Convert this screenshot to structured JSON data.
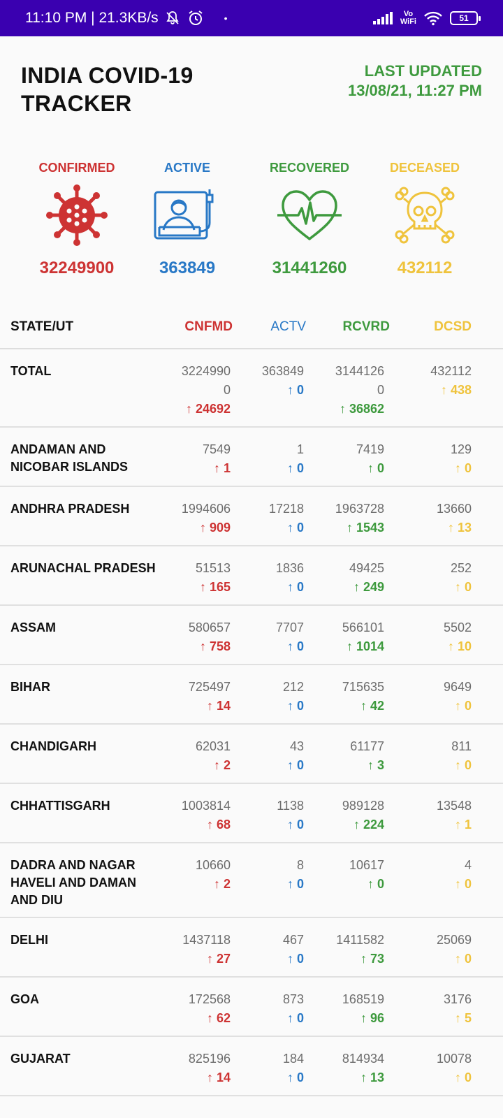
{
  "status_bar": {
    "time_speed": "11:10 PM | 21.3KB/s",
    "dot": "•",
    "vo": "Vo",
    "wifi": "WiFi",
    "battery": "51"
  },
  "header": {
    "title_line1": "INDIA COVID-19",
    "title_line2": "TRACKER",
    "last_updated_label": "LAST UPDATED",
    "last_updated_value": "13/08/21, 11:27 PM"
  },
  "summary": {
    "confirmed": {
      "label": "CONFIRMED",
      "value": "32249900"
    },
    "active": {
      "label": "ACTIVE",
      "value": "363849"
    },
    "recovered": {
      "label": "RECOVERED",
      "value": "31441260"
    },
    "deceased": {
      "label": "DECEASED",
      "value": "432112"
    }
  },
  "table": {
    "headers": {
      "state": "STATE/UT",
      "confirmed": "CNFMD",
      "active": "ACTV",
      "recovered": "RCVRD",
      "deceased": "DCSD"
    },
    "total": {
      "name": "TOTAL",
      "confirmed_line1": "3224990",
      "confirmed_line2": "0",
      "confirmed_delta": "↑ 24692",
      "active": "363849",
      "active_delta": "↑ 0",
      "recovered_line1": "3144126",
      "recovered_line2": "0",
      "recovered_delta": "↑ 36862",
      "deceased": "432112",
      "deceased_delta": "↑ 438"
    },
    "rows": [
      {
        "name": "ANDAMAN AND NICOBAR ISLANDS",
        "confirmed": "7549",
        "confirmed_delta": "↑ 1",
        "active": "1",
        "active_delta": "↑ 0",
        "recovered": "7419",
        "recovered_delta": "↑ 0",
        "deceased": "129",
        "deceased_delta": "↑ 0"
      },
      {
        "name": "ANDHRA PRADESH",
        "confirmed": "1994606",
        "confirmed_delta": "↑ 909",
        "active": "17218",
        "active_delta": "↑ 0",
        "recovered": "1963728",
        "recovered_delta": "↑ 1543",
        "deceased": "13660",
        "deceased_delta": "↑ 13"
      },
      {
        "name": "ARUNACHAL PRADESH",
        "confirmed": "51513",
        "confirmed_delta": "↑ 165",
        "active": "1836",
        "active_delta": "↑ 0",
        "recovered": "49425",
        "recovered_delta": "↑ 249",
        "deceased": "252",
        "deceased_delta": "↑ 0"
      },
      {
        "name": "ASSAM",
        "confirmed": "580657",
        "confirmed_delta": "↑ 758",
        "active": "7707",
        "active_delta": "↑ 0",
        "recovered": "566101",
        "recovered_delta": "↑ 1014",
        "deceased": "5502",
        "deceased_delta": "↑ 10"
      },
      {
        "name": "BIHAR",
        "confirmed": "725497",
        "confirmed_delta": "↑ 14",
        "active": "212",
        "active_delta": "↑ 0",
        "recovered": "715635",
        "recovered_delta": "↑ 42",
        "deceased": "9649",
        "deceased_delta": "↑ 0"
      },
      {
        "name": "CHANDIGARH",
        "confirmed": "62031",
        "confirmed_delta": "↑ 2",
        "active": "43",
        "active_delta": "↑ 0",
        "recovered": "61177",
        "recovered_delta": "↑ 3",
        "deceased": "811",
        "deceased_delta": "↑ 0"
      },
      {
        "name": "CHHATTISGARH",
        "confirmed": "1003814",
        "confirmed_delta": "↑ 68",
        "active": "1138",
        "active_delta": "↑ 0",
        "recovered": "989128",
        "recovered_delta": "↑ 224",
        "deceased": "13548",
        "deceased_delta": "↑ 1"
      },
      {
        "name": "DADRA AND NAGAR HAVELI AND DAMAN AND DIU",
        "confirmed": "10660",
        "confirmed_delta": "↑ 2",
        "active": "8",
        "active_delta": "↑ 0",
        "recovered": "10617",
        "recovered_delta": "↑ 0",
        "deceased": "4",
        "deceased_delta": "↑ 0"
      },
      {
        "name": "DELHI",
        "confirmed": "1437118",
        "confirmed_delta": "↑ 27",
        "active": "467",
        "active_delta": "↑ 0",
        "recovered": "1411582",
        "recovered_delta": "↑ 73",
        "deceased": "25069",
        "deceased_delta": "↑ 0"
      },
      {
        "name": "GOA",
        "confirmed": "172568",
        "confirmed_delta": "↑ 62",
        "active": "873",
        "active_delta": "↑ 0",
        "recovered": "168519",
        "recovered_delta": "↑ 96",
        "deceased": "3176",
        "deceased_delta": "↑ 5"
      },
      {
        "name": "GUJARAT",
        "confirmed": "825196",
        "confirmed_delta": "↑ 14",
        "active": "184",
        "active_delta": "↑ 0",
        "recovered": "814934",
        "recovered_delta": "↑ 13",
        "deceased": "10078",
        "deceased_delta": "↑ 0"
      }
    ]
  },
  "colors": {
    "status_bar": "#3a00b0",
    "confirmed": "#cd3333",
    "active": "#2878c6",
    "recovered": "#3e9a3e",
    "deceased": "#efc33c"
  },
  "icons": {
    "confirmed": "virus-icon",
    "active": "hospital-bed-patient-icon",
    "recovered": "heartbeat-icon",
    "deceased": "skull-crossbones-icon"
  }
}
